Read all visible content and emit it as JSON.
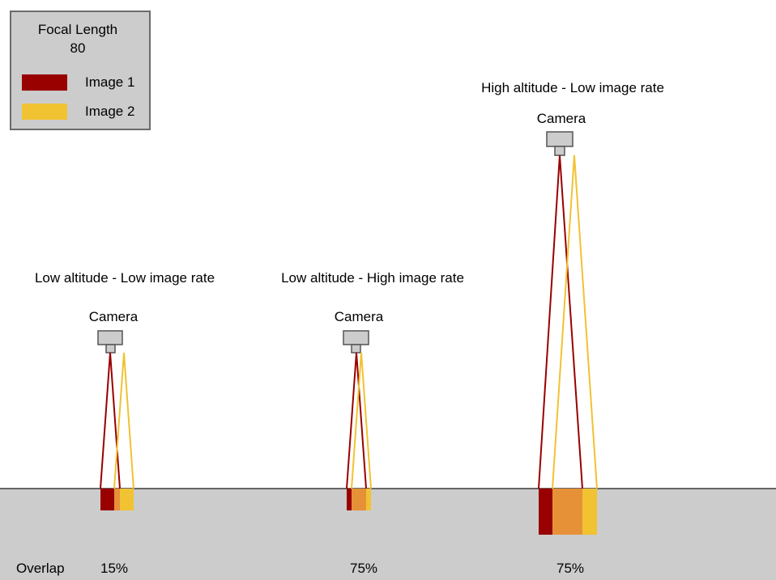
{
  "legend": {
    "title_line1": "Focal Length",
    "title_line2": "80",
    "items": [
      {
        "label": "Image 1",
        "color": "#990000"
      },
      {
        "label": "Image 2",
        "color": "#f1c232"
      }
    ]
  },
  "colors": {
    "image1": "#990000",
    "image2": "#f1c232",
    "overlap": "#e69138",
    "ground": "#cccccc",
    "ground_line": "#666666",
    "camera_body": "#cccccc",
    "camera_outline": "#555555"
  },
  "ground_label": "Overlap",
  "scenarios": [
    {
      "title": "Low altitude - Low image rate",
      "camera_label": "Camera",
      "overlap": "15%"
    },
    {
      "title": "Low altitude - High image rate",
      "camera_label": "Camera",
      "overlap": "75%"
    },
    {
      "title": "High altitude - Low image rate",
      "camera_label": "Camera",
      "overlap": "75%"
    }
  ]
}
